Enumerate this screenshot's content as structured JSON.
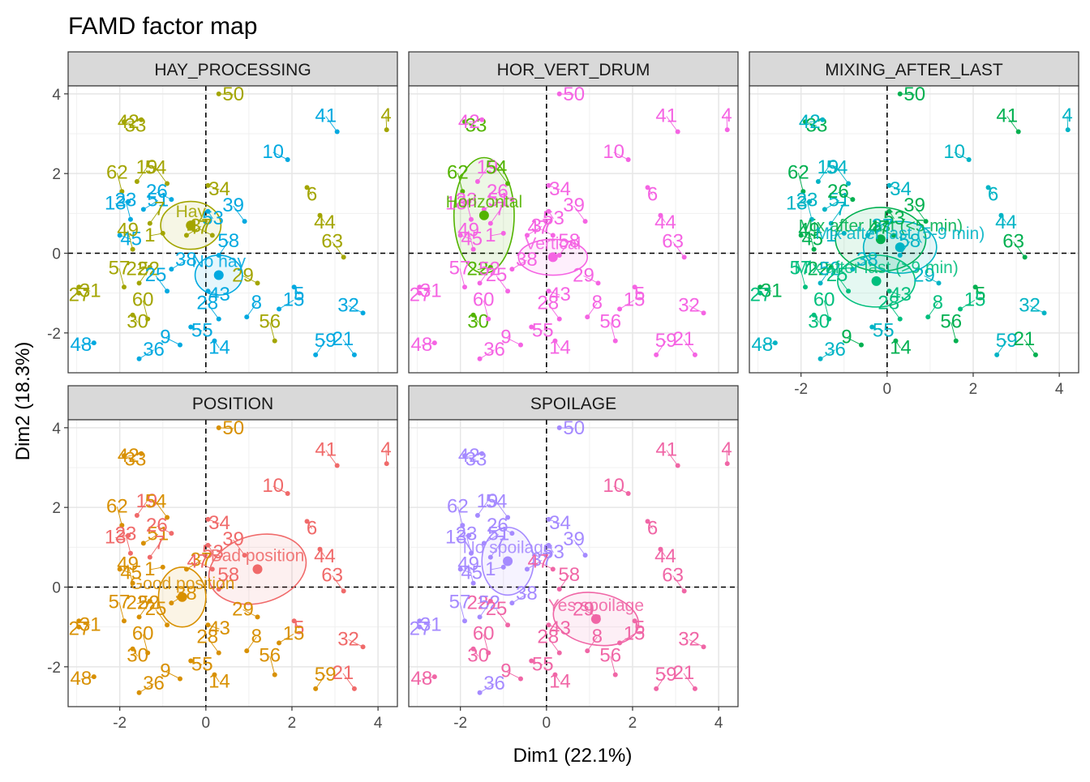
{
  "chart_data": {
    "type": "scatter",
    "title": "FAMD factor map",
    "xlabel": "Dim1 (22.1%)",
    "ylabel": "Dim2 (18.3%)",
    "xlim": [
      -3.2,
      4.45
    ],
    "ylim": [
      -3.0,
      4.2
    ],
    "x_ticks": [
      -2,
      0,
      2,
      4
    ],
    "y_ticks": [
      -2,
      0,
      2,
      4
    ],
    "grid": true,
    "reference_lines": {
      "x": 0,
      "y": 0,
      "style": "dashed"
    },
    "observations": [
      {
        "id": "4",
        "x": 4.2,
        "y": 3.1
      },
      {
        "id": "41",
        "x": 3.05,
        "y": 3.05
      },
      {
        "id": "33",
        "x": -1.9,
        "y": 3.3
      },
      {
        "id": "42",
        "x": -1.5,
        "y": 3.35
      },
      {
        "id": "50",
        "x": 0.3,
        "y": 4.0
      },
      {
        "id": "10",
        "x": 1.9,
        "y": 2.35
      },
      {
        "id": "6",
        "x": 2.35,
        "y": 1.65
      },
      {
        "id": "62",
        "x": -1.95,
        "y": 1.55
      },
      {
        "id": "19",
        "x": -1.6,
        "y": 1.8
      },
      {
        "id": "54",
        "x": -0.9,
        "y": 1.75
      },
      {
        "id": "34",
        "x": 0.05,
        "y": 1.7
      },
      {
        "id": "13",
        "x": -1.8,
        "y": 1.3
      },
      {
        "id": "51",
        "x": -1.45,
        "y": 1.1
      },
      {
        "id": "26",
        "x": -0.8,
        "y": 1.35
      },
      {
        "id": "53",
        "x": 0.05,
        "y": 1.05
      },
      {
        "id": "23",
        "x": -1.75,
        "y": 0.85
      },
      {
        "id": "7",
        "x": -1.3,
        "y": 0.75
      },
      {
        "id": "39",
        "x": 0.9,
        "y": 0.8
      },
      {
        "id": "45",
        "x": -2.0,
        "y": 0.45
      },
      {
        "id": "1",
        "x": -1.0,
        "y": 0.5
      },
      {
        "id": "37",
        "x": -0.45,
        "y": 0.45
      },
      {
        "id": "47",
        "x": 0.15,
        "y": 0.45
      },
      {
        "id": "44",
        "x": 2.65,
        "y": 0.95
      },
      {
        "id": "49",
        "x": -1.7,
        "y": 0.1
      },
      {
        "id": "58",
        "x": 0.3,
        "y": -0.05
      },
      {
        "id": "63",
        "x": 3.2,
        "y": -0.1
      },
      {
        "id": "31",
        "x": -2.95,
        "y": -0.85
      },
      {
        "id": "22",
        "x": -1.3,
        "y": -0.35
      },
      {
        "id": "38",
        "x": -0.8,
        "y": -0.4
      },
      {
        "id": "29",
        "x": 1.2,
        "y": -0.75
      },
      {
        "id": "5",
        "x": 2.05,
        "y": -0.85
      },
      {
        "id": "57",
        "x": -1.9,
        "y": -0.85
      },
      {
        "id": "52",
        "x": -1.55,
        "y": -0.75
      },
      {
        "id": "25",
        "x": -0.9,
        "y": -0.95
      },
      {
        "id": "43",
        "x": 0.05,
        "y": -0.95
      },
      {
        "id": "27",
        "x": -2.95,
        "y": -1.0
      },
      {
        "id": "15",
        "x": 1.7,
        "y": -1.4
      },
      {
        "id": "32",
        "x": 3.65,
        "y": -1.5
      },
      {
        "id": "30",
        "x": -1.7,
        "y": -1.55
      },
      {
        "id": "60",
        "x": -1.35,
        "y": -1.65
      },
      {
        "id": "8",
        "x": 0.95,
        "y": -1.6
      },
      {
        "id": "28",
        "x": 0.3,
        "y": -1.65
      },
      {
        "id": "55",
        "x": -0.35,
        "y": -1.85
      },
      {
        "id": "48",
        "x": -2.6,
        "y": -2.25
      },
      {
        "id": "36",
        "x": -1.55,
        "y": -2.65
      },
      {
        "id": "9",
        "x": -0.6,
        "y": -2.3
      },
      {
        "id": "14",
        "x": 0.2,
        "y": -2.2
      },
      {
        "id": "56",
        "x": 1.6,
        "y": -2.2
      },
      {
        "id": "59",
        "x": 2.55,
        "y": -2.55
      },
      {
        "id": "21",
        "x": 3.45,
        "y": -2.55
      }
    ],
    "panels": [
      {
        "strip": "HAY_PROCESSING",
        "levels": [
          {
            "label": "Hay",
            "color": "#a3a500",
            "center": [
              -0.35,
              0.7
            ],
            "radii": [
              0.7,
              0.6
            ],
            "angle": 0
          },
          {
            "label": "No hay",
            "color": "#00a9e0",
            "center": [
              0.3,
              -0.55
            ],
            "radii": [
              0.55,
              0.5
            ],
            "angle": 0
          }
        ],
        "assignment": {
          "default": "No hay",
          "Hay": [
            "33",
            "42",
            "50",
            "4",
            "62",
            "19",
            "54",
            "34",
            "6",
            "44",
            "63",
            "31",
            "49",
            "22",
            "57",
            "52",
            "27",
            "30",
            "60",
            "56",
            "7",
            "1",
            "37",
            "47",
            "29"
          ]
        }
      },
      {
        "strip": "HOR_VERT_DRUM",
        "levels": [
          {
            "label": "Horizontal",
            "color": "#53b400",
            "center": [
              -1.45,
              0.95
            ],
            "radii": [
              0.7,
              1.45
            ],
            "angle": 0
          },
          {
            "label": "Vertical",
            "color": "#f564e3",
            "center": [
              0.15,
              -0.1
            ],
            "radii": [
              0.8,
              0.45
            ],
            "angle": 0
          }
        ],
        "assignment": {
          "default": "Vertical",
          "Horizontal": [
            "33",
            "62",
            "54",
            "22",
            "30"
          ]
        }
      },
      {
        "strip": "MIXING_AFTER_LAST",
        "levels": [
          {
            "label": "Mix after last (<5 min)",
            "color": "#00b050",
            "center": [
              -0.15,
              0.35
            ],
            "radii": [
              1.05,
              0.8
            ],
            "angle": 0
          },
          {
            "label": "Mix after last (5-9 min)",
            "color": "#00b4c5",
            "center": [
              0.3,
              0.15
            ],
            "radii": [
              0.85,
              0.65
            ],
            "angle": 0
          },
          {
            "label": "Mix after last (>9 min)",
            "color": "#00bf7d",
            "center": [
              -0.25,
              -0.7
            ],
            "radii": [
              0.9,
              0.65
            ],
            "angle": 0
          }
        ],
        "assignment": {
          "default": "Mix after last (5-9 min)",
          "Mix after last (<5 min)": [
            "33",
            "50",
            "62",
            "41",
            "26",
            "53",
            "63",
            "21",
            "31",
            "45",
            "49",
            "5",
            "9",
            "56",
            "14",
            "22",
            "39",
            "47"
          ],
          "Mix after last (>9 min)": [
            "28",
            "30",
            "60",
            "25",
            "15",
            "8",
            "57",
            "43",
            "27"
          ]
        }
      },
      {
        "strip": "POSITION",
        "levels": [
          {
            "label": "Bad position",
            "color": "#f06a6a",
            "center": [
              1.2,
              0.45
            ],
            "radii": [
              1.15,
              0.85
            ],
            "angle": 15
          },
          {
            "label": "Good position",
            "color": "#d89000",
            "center": [
              -0.55,
              -0.25
            ],
            "radii": [
              0.55,
              0.75
            ],
            "angle": 0
          }
        ],
        "assignment": {
          "default": "Good position",
          "Bad position": [
            "41",
            "10",
            "6",
            "44",
            "63",
            "32",
            "21",
            "19",
            "13",
            "23",
            "26",
            "34",
            "53",
            "39",
            "47",
            "58",
            "5",
            "4",
            "7"
          ]
        }
      },
      {
        "strip": "SPOILAGE",
        "levels": [
          {
            "label": "No spoilage",
            "color": "#a58aff",
            "center": [
              -0.9,
              0.65
            ],
            "radii": [
              0.6,
              0.85
            ],
            "angle": 0
          },
          {
            "label": "Yes spoilage",
            "color": "#f066a6",
            "center": [
              1.15,
              -0.8
            ],
            "radii": [
              1.0,
              0.65
            ],
            "angle": -10
          }
        ],
        "assignment": {
          "default": "No spoilage",
          "Yes spoilage": [
            "4",
            "6",
            "44",
            "63",
            "32",
            "21",
            "58",
            "29",
            "5",
            "15",
            "8",
            "28",
            "59",
            "56",
            "14",
            "9",
            "55",
            "25",
            "60",
            "48",
            "30",
            "47",
            "10",
            "41",
            "22",
            "43"
          ]
        }
      }
    ]
  }
}
